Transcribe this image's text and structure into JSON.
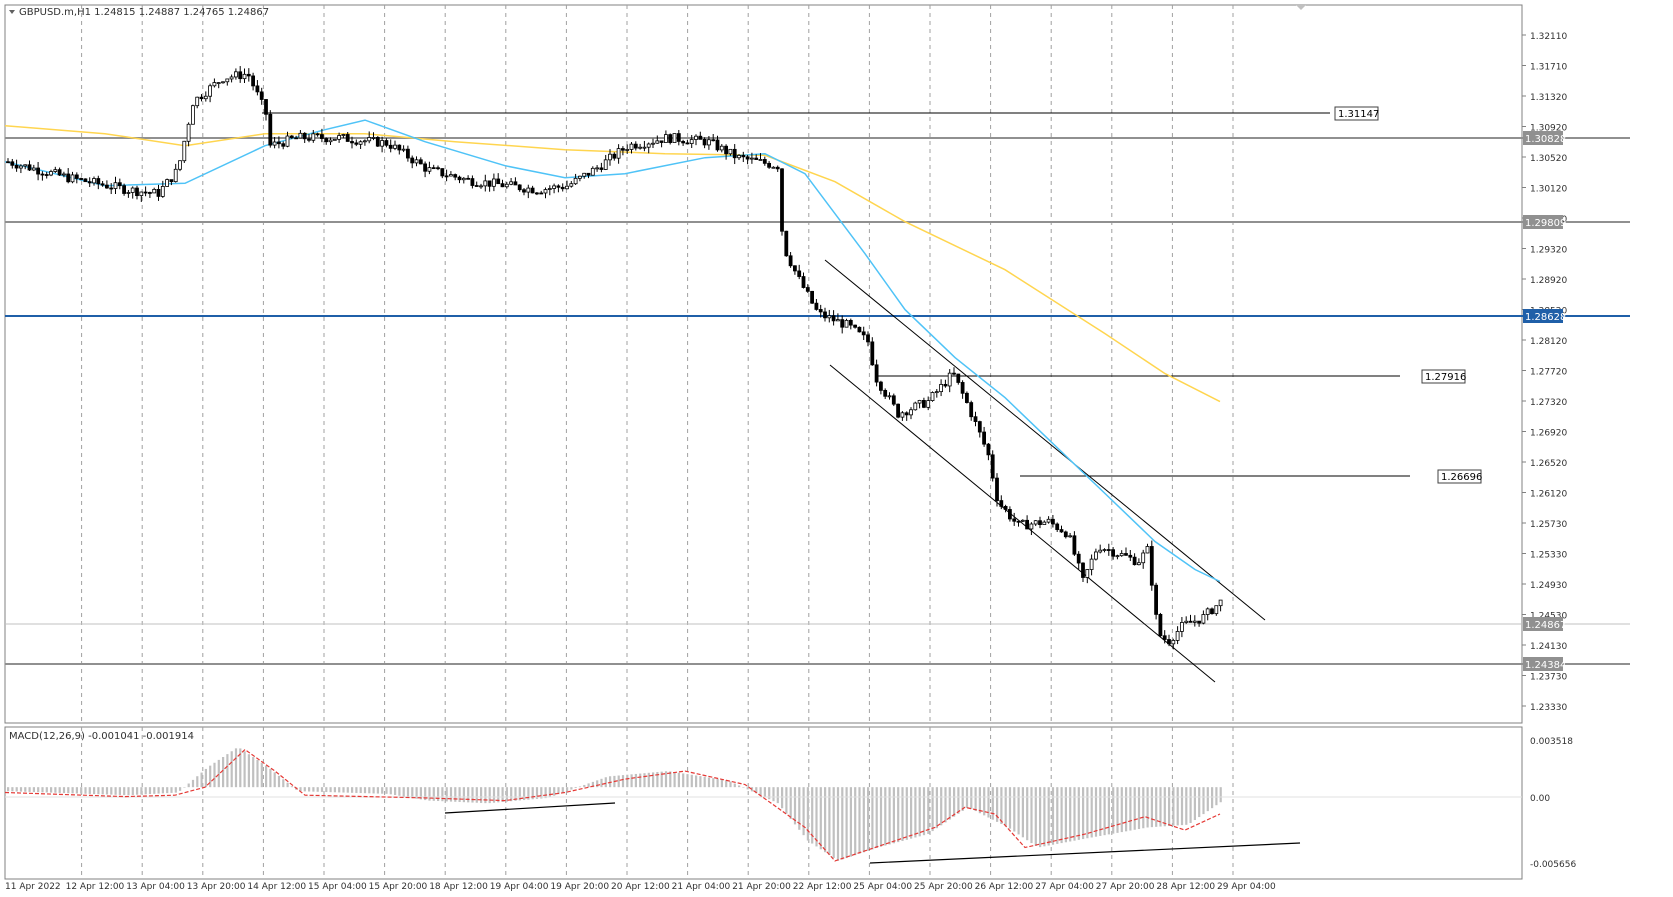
{
  "window": {
    "symbol_header": "GBPUSD.m,H1  1.24815 1.24887 1.24765 1.24867",
    "symbol": "GBPUSD.m",
    "timeframe": "H1",
    "ohlc": {
      "open": "1.24815",
      "high": "1.24887",
      "low": "1.24765",
      "close": "1.24867"
    }
  },
  "price_axis": {
    "labels": [
      "1.32110",
      "1.31710",
      "1.31320",
      "1.30920",
      "1.30520",
      "1.30120",
      "1.29720",
      "1.29320",
      "1.28920",
      "1.28520",
      "1.28120",
      "1.27720",
      "1.27320",
      "1.26920",
      "1.26520",
      "1.26120",
      "1.25730",
      "1.25330",
      "1.24930",
      "1.24530",
      "1.24130",
      "1.23730",
      "1.23330"
    ]
  },
  "macd_axis": {
    "labels": [
      "0.003518",
      "0.00",
      "-0.005656"
    ]
  },
  "time_axis": {
    "labels": [
      "11 Apr 2022",
      "12 Apr 12:00",
      "13 Apr 04:00",
      "13 Apr 20:00",
      "14 Apr 12:00",
      "15 Apr 04:00",
      "15 Apr 20:00",
      "18 Apr 12:00",
      "19 Apr 04:00",
      "19 Apr 20:00",
      "20 Apr 12:00",
      "21 Apr 04:00",
      "21 Apr 20:00",
      "22 Apr 12:00",
      "25 Apr 04:00",
      "25 Apr 20:00",
      "26 Apr 12:00",
      "27 Apr 04:00",
      "27 Apr 20:00",
      "28 Apr 12:00",
      "29 Apr 04:00"
    ]
  },
  "levels": [
    {
      "label": "1.31147",
      "kind": "callout"
    },
    {
      "label": "1.30828",
      "kind": "axis-tag"
    },
    {
      "label": "1.29809",
      "kind": "axis-tag"
    },
    {
      "label": "1.28628",
      "kind": "axis-tag-blue"
    },
    {
      "label": "1.27916",
      "kind": "callout"
    },
    {
      "label": "1.26696",
      "kind": "callout"
    },
    {
      "label": "1.24867",
      "kind": "axis-tag"
    },
    {
      "label": "1.24384",
      "kind": "axis-tag"
    }
  ],
  "macd": {
    "title": "MACD(12,26,9) -0.001041 -0.001914"
  },
  "colors": {
    "candle_up": "#ffffff",
    "candle_down": "#000000",
    "ma_fast": "#4fc3f7",
    "ma_slow": "#ffd54f",
    "blue_level": "#1f5fa8",
    "histogram": "#c0c0c0",
    "signal": "#e53935",
    "grid": "#a0a0a0"
  },
  "chart_data": {
    "type": "candlestick",
    "title": "GBPUSD.m,H1",
    "ylim": [
      1.2333,
      1.3231
    ],
    "close_path": [
      [
        0,
        1.3035
      ],
      [
        60,
        1.3015
      ],
      [
        120,
        1.3
      ],
      [
        150,
        1.2995
      ],
      [
        170,
        1.3025
      ],
      [
        185,
        1.311
      ],
      [
        215,
        1.314
      ],
      [
        240,
        1.3145
      ],
      [
        258,
        1.3095
      ],
      [
        262,
        1.3055
      ],
      [
        290,
        1.3065
      ],
      [
        330,
        1.3065
      ],
      [
        380,
        1.3058
      ],
      [
        420,
        1.3025
      ],
      [
        460,
        1.3012
      ],
      [
        500,
        1.3005
      ],
      [
        530,
        1.3
      ],
      [
        560,
        1.3005
      ],
      [
        590,
        1.3028
      ],
      [
        620,
        1.3055
      ],
      [
        660,
        1.3065
      ],
      [
        700,
        1.306
      ],
      [
        730,
        1.304
      ],
      [
        770,
        1.303
      ],
      [
        775,
        1.293
      ],
      [
        790,
        1.289
      ],
      [
        810,
        1.2845
      ],
      [
        840,
        1.283
      ],
      [
        860,
        1.281
      ],
      [
        868,
        1.2765
      ],
      [
        890,
        1.272
      ],
      [
        920,
        1.2735
      ],
      [
        945,
        1.277
      ],
      [
        960,
        1.273
      ],
      [
        980,
        1.267
      ],
      [
        990,
        1.261
      ],
      [
        1010,
        1.258
      ],
      [
        1040,
        1.2585
      ],
      [
        1060,
        1.257
      ],
      [
        1075,
        1.251
      ],
      [
        1090,
        1.2555
      ],
      [
        1110,
        1.2545
      ],
      [
        1130,
        1.2535
      ],
      [
        1140,
        1.255
      ],
      [
        1150,
        1.2445
      ],
      [
        1160,
        1.2435
      ],
      [
        1175,
        1.2455
      ],
      [
        1195,
        1.2465
      ],
      [
        1215,
        1.2487
      ]
    ],
    "ma_fast_path": [
      [
        0,
        1.3035
      ],
      [
        100,
        1.3005
      ],
      [
        180,
        1.3008
      ],
      [
        260,
        1.3055
      ],
      [
        320,
        1.3075
      ],
      [
        360,
        1.3087
      ],
      [
        420,
        1.306
      ],
      [
        500,
        1.303
      ],
      [
        560,
        1.3015
      ],
      [
        620,
        1.302
      ],
      [
        700,
        1.304
      ],
      [
        760,
        1.3045
      ],
      [
        800,
        1.302
      ],
      [
        860,
        1.292
      ],
      [
        900,
        1.285
      ],
      [
        950,
        1.279
      ],
      [
        1000,
        1.274
      ],
      [
        1050,
        1.268
      ],
      [
        1100,
        1.262
      ],
      [
        1150,
        1.256
      ],
      [
        1190,
        1.2525
      ],
      [
        1215,
        1.251
      ]
    ],
    "ma_slow_path": [
      [
        0,
        1.308
      ],
      [
        100,
        1.307
      ],
      [
        180,
        1.3055
      ],
      [
        260,
        1.307
      ],
      [
        360,
        1.307
      ],
      [
        450,
        1.306
      ],
      [
        560,
        1.305
      ],
      [
        660,
        1.3045
      ],
      [
        760,
        1.3043
      ],
      [
        830,
        1.301
      ],
      [
        900,
        1.296
      ],
      [
        1000,
        1.29
      ],
      [
        1100,
        1.282
      ],
      [
        1160,
        1.277
      ],
      [
        1215,
        1.2735
      ]
    ],
    "macd_hist": [
      [
        0,
        -0.0003
      ],
      [
        120,
        -0.0006
      ],
      [
        170,
        -0.0004
      ],
      [
        200,
        0.0015
      ],
      [
        230,
        0.003
      ],
      [
        260,
        0.0015
      ],
      [
        290,
        -0.0003
      ],
      [
        380,
        -0.0005
      ],
      [
        420,
        -0.001
      ],
      [
        480,
        -0.0012
      ],
      [
        540,
        -0.0008
      ],
      [
        600,
        0.0008
      ],
      [
        660,
        0.0012
      ],
      [
        720,
        0.0005
      ],
      [
        770,
        -0.0012
      ],
      [
        800,
        -0.004
      ],
      [
        830,
        -0.0055
      ],
      [
        870,
        -0.0045
      ],
      [
        920,
        -0.0035
      ],
      [
        960,
        -0.0015
      ],
      [
        1000,
        -0.003
      ],
      [
        1030,
        -0.0045
      ],
      [
        1080,
        -0.0038
      ],
      [
        1140,
        -0.003
      ],
      [
        1180,
        -0.0028
      ],
      [
        1215,
        -0.001
      ]
    ],
    "macd_signal": [
      [
        0,
        -0.0004
      ],
      [
        120,
        -0.0007
      ],
      [
        170,
        -0.0006
      ],
      [
        200,
        0.0
      ],
      [
        240,
        0.0028
      ],
      [
        270,
        0.0012
      ],
      [
        300,
        -0.0006
      ],
      [
        420,
        -0.0008
      ],
      [
        500,
        -0.001
      ],
      [
        560,
        -0.0004
      ],
      [
        620,
        0.0006
      ],
      [
        680,
        0.0012
      ],
      [
        740,
        0.0002
      ],
      [
        800,
        -0.003
      ],
      [
        830,
        -0.0055
      ],
      [
        870,
        -0.0045
      ],
      [
        930,
        -0.003
      ],
      [
        960,
        -0.0015
      ],
      [
        990,
        -0.002
      ],
      [
        1020,
        -0.0045
      ],
      [
        1080,
        -0.0035
      ],
      [
        1140,
        -0.0022
      ],
      [
        1180,
        -0.0032
      ],
      [
        1215,
        -0.002
      ]
    ]
  }
}
